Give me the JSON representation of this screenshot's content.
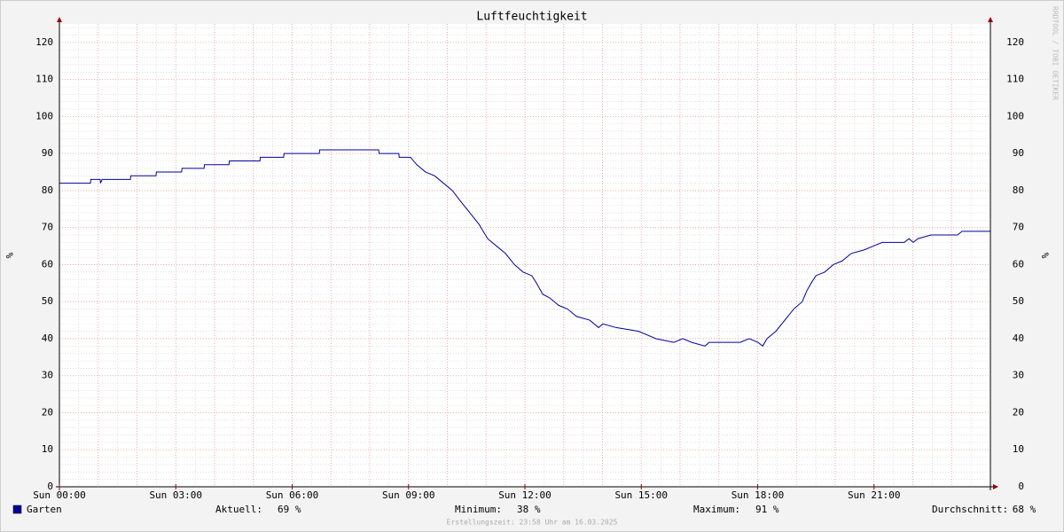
{
  "chart_data": {
    "type": "line",
    "title": "Luftfeuchtigkeit",
    "y_label": "%",
    "watermark": "RRDTOOL / TOBI OETIKER",
    "xlim": [
      0,
      24
    ],
    "ylim": [
      0,
      125
    ],
    "xticks": [
      {
        "value": 0,
        "label": "Sun 00:00"
      },
      {
        "value": 3,
        "label": "Sun 03:00"
      },
      {
        "value": 6,
        "label": "Sun 06:00"
      },
      {
        "value": 9,
        "label": "Sun 09:00"
      },
      {
        "value": 12,
        "label": "Sun 12:00"
      },
      {
        "value": 15,
        "label": "Sun 15:00"
      },
      {
        "value": 18,
        "label": "Sun 18:00"
      },
      {
        "value": 21,
        "label": "Sun 21:00"
      }
    ],
    "x_major_grid": [
      0,
      1,
      2,
      3,
      4,
      5,
      6,
      7,
      8,
      9,
      10,
      11,
      12,
      13,
      14,
      15,
      16,
      17,
      18,
      19,
      20,
      21,
      22,
      23,
      24
    ],
    "x_minor_grid": [
      0.5,
      1.5,
      2.5,
      3.5,
      4.5,
      5.5,
      6.5,
      7.5,
      8.5,
      9.5,
      10.5,
      11.5,
      12.5,
      13.5,
      14.5,
      15.5,
      16.5,
      17.5,
      18.5,
      19.5,
      20.5,
      21.5,
      22.5,
      23.5
    ],
    "yticks": [
      0,
      10,
      20,
      30,
      40,
      50,
      60,
      70,
      80,
      90,
      100,
      110,
      120
    ],
    "y_minor_grid": [
      2,
      4,
      6,
      8,
      12,
      14,
      16,
      18,
      22,
      24,
      26,
      28,
      32,
      34,
      36,
      38,
      42,
      44,
      46,
      48,
      52,
      54,
      56,
      58,
      62,
      64,
      66,
      68,
      72,
      74,
      76,
      78,
      82,
      84,
      86,
      88,
      92,
      94,
      96,
      98,
      102,
      104,
      106,
      108,
      112,
      114,
      116,
      118,
      122,
      124
    ],
    "grid": true,
    "series": [
      {
        "name": "Garten",
        "color": "#000099",
        "x": [
          0,
          0.8,
          0.81,
          1.05,
          1.06,
          1.1,
          1.83,
          1.84,
          2.49,
          2.5,
          3.15,
          3.16,
          3.73,
          3.74,
          4.37,
          4.38,
          5.17,
          5.18,
          5.78,
          5.79,
          6.7,
          6.71,
          8.23,
          8.24,
          8.75,
          8.76,
          9.05,
          9.21,
          9.44,
          9.67,
          9.9,
          10.13,
          10.35,
          10.58,
          10.81,
          11.04,
          11.27,
          11.5,
          11.73,
          11.95,
          12.18,
          12.3,
          12.46,
          12.64,
          12.87,
          13.1,
          13.33,
          13.67,
          13.9,
          14.01,
          14.35,
          14.93,
          15.38,
          15.84,
          16.07,
          16.3,
          16.64,
          16.75,
          17.55,
          17.78,
          18.01,
          18.13,
          18.24,
          18.47,
          18.7,
          18.93,
          19.15,
          19.27,
          19.38,
          19.5,
          19.73,
          19.95,
          20.18,
          20.41,
          20.75,
          20.98,
          21.21,
          21.78,
          21.9,
          22.01,
          22.13,
          22.47,
          23.15,
          23.27,
          24
        ],
        "values": [
          82,
          82,
          83,
          83,
          82,
          83,
          83,
          84,
          84,
          85,
          85,
          86,
          86,
          87,
          87,
          88,
          88,
          89,
          89,
          90,
          90,
          91,
          91,
          90,
          90,
          89,
          89,
          87,
          85,
          84,
          82,
          80,
          77,
          74,
          71,
          67,
          65,
          63,
          60,
          58,
          57,
          55,
          52,
          51,
          49,
          48,
          46,
          45,
          43,
          44,
          43,
          42,
          40,
          39,
          40,
          39,
          38,
          39,
          39,
          40,
          39,
          38,
          40,
          42,
          45,
          48,
          50,
          53,
          55,
          57,
          58,
          60,
          61,
          63,
          64,
          65,
          66,
          66,
          67,
          66,
          67,
          68,
          68,
          69,
          69
        ]
      }
    ],
    "legend_stats": [
      {
        "label": "Aktuell:",
        "value": "69 %"
      },
      {
        "label": "Minimum:",
        "value": "38 %"
      },
      {
        "label": "Maximum:",
        "value": "91 %"
      },
      {
        "label": "Durchschnitt:",
        "value": "68 %"
      }
    ],
    "footer": "Erstellungszeit: 23:58 Uhr am 16.03.2025"
  }
}
